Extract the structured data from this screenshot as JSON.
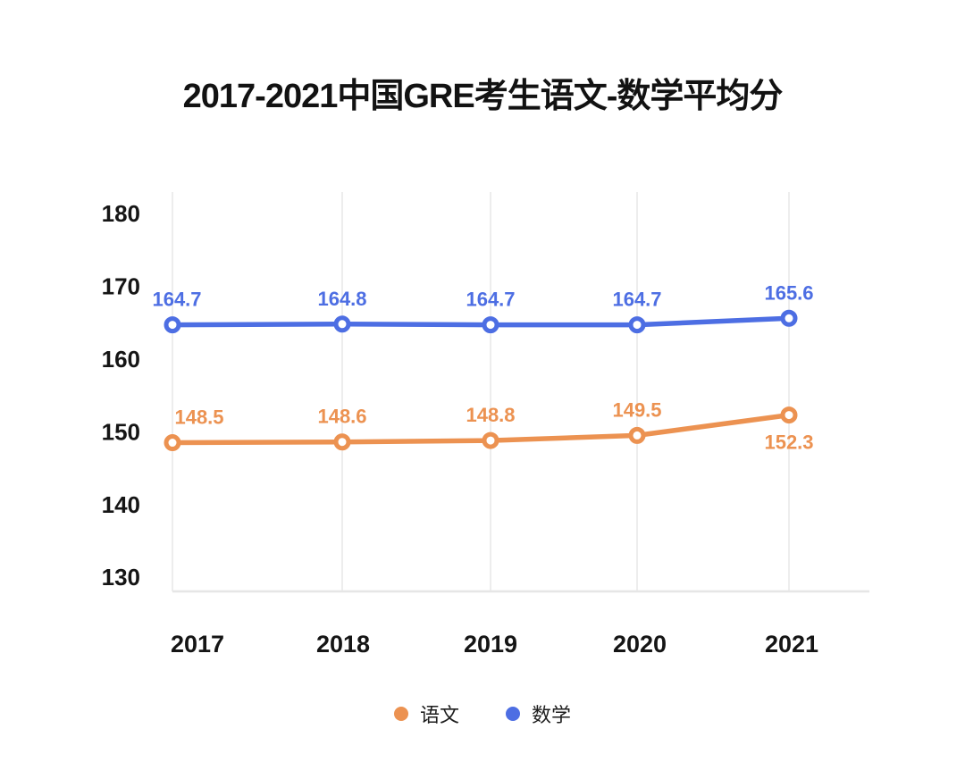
{
  "chart_data": {
    "type": "line",
    "title": "2017-2021中国GRE考生语文-数学平均分",
    "categories": [
      "2017",
      "2018",
      "2019",
      "2020",
      "2021"
    ],
    "series": [
      {
        "name": "语文",
        "color": "#EC9251",
        "values": [
          148.5,
          148.6,
          148.8,
          149.5,
          152.3
        ],
        "label_side": [
          "above",
          "above",
          "above",
          "above",
          "below"
        ]
      },
      {
        "name": "数学",
        "color": "#4D6EE3",
        "values": [
          164.7,
          164.8,
          164.7,
          164.7,
          165.6
        ],
        "label_side": [
          "above",
          "above",
          "above",
          "above",
          "above"
        ]
      }
    ],
    "yticks": [
      130,
      140,
      150,
      160,
      170,
      180
    ],
    "ylim": [
      130,
      180
    ],
    "grid": "vertical-only",
    "legend_position": "bottom",
    "colors": {
      "gridline": "#EDEDED",
      "axis_line": "#E6E6E6",
      "tick_label": "#151515",
      "title": "#121212",
      "background": "#ffffff"
    }
  }
}
